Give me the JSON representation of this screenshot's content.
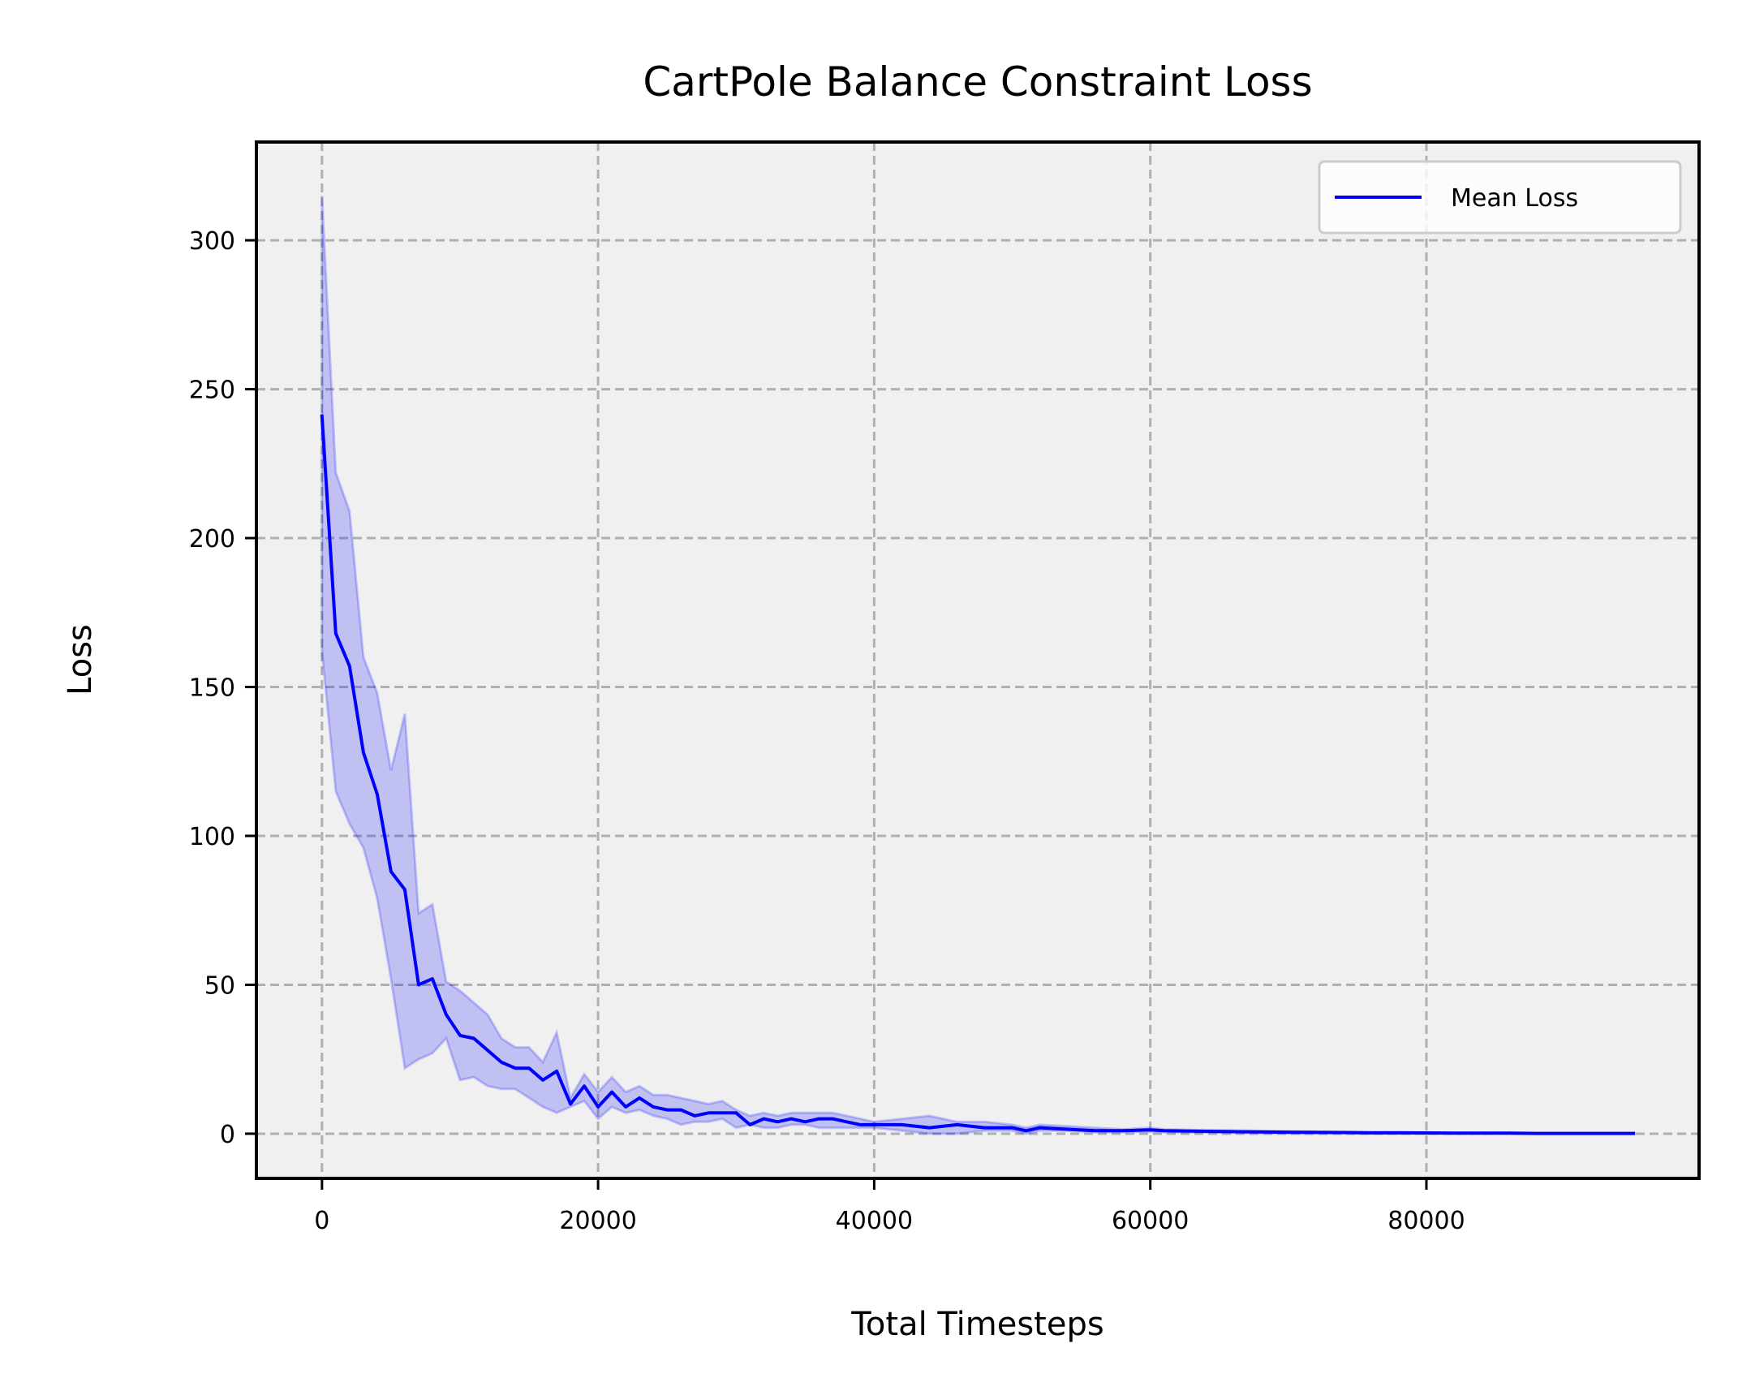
{
  "chart_data": {
    "type": "line",
    "title": "CartPole Balance Constraint Loss",
    "xlabel": "Total Timesteps",
    "ylabel": "Loss",
    "xlim": [
      -4750,
      99750
    ],
    "ylim": [
      -15,
      333
    ],
    "xticks": [
      0,
      20000,
      40000,
      60000,
      80000
    ],
    "yticks": [
      0,
      50,
      100,
      150,
      200,
      250,
      300
    ],
    "xtick_labels": [
      "0",
      "20000",
      "40000",
      "60000",
      "80000"
    ],
    "ytick_labels": [
      "0",
      "50",
      "100",
      "150",
      "200",
      "250",
      "300"
    ],
    "grid": true,
    "legend": {
      "position": "top-right",
      "entries": [
        "Mean Loss"
      ]
    },
    "colors": {
      "line": "#0000ff",
      "band": "#0000ff",
      "plot_bg": "#f0f0f0",
      "grid": "#b0b0b0"
    },
    "series": [
      {
        "name": "Mean Loss",
        "x": [
          0,
          1000,
          2000,
          3000,
          4000,
          5000,
          6000,
          7000,
          8000,
          9000,
          10000,
          11000,
          12000,
          13000,
          14000,
          15000,
          16000,
          17000,
          18000,
          19000,
          20000,
          21000,
          22000,
          23000,
          24000,
          25000,
          26000,
          27000,
          28000,
          29000,
          30000,
          31000,
          32000,
          33000,
          34000,
          35000,
          36000,
          37000,
          38000,
          39000,
          40000,
          42000,
          44000,
          46000,
          48000,
          50000,
          51000,
          52000,
          54000,
          56000,
          58000,
          60000,
          61000,
          64000,
          66000,
          70000,
          74000,
          76000,
          78000,
          82000,
          86000,
          88000,
          92000,
          95000
        ],
        "y": [
          241,
          168,
          157,
          128,
          114,
          88,
          82,
          50,
          52,
          40,
          33,
          32,
          28,
          24,
          22,
          22,
          18,
          21,
          10,
          16,
          9,
          14,
          9,
          12,
          9,
          8,
          8,
          6,
          7,
          7,
          7,
          3,
          5,
          4,
          5,
          4,
          5,
          5,
          4,
          3,
          3,
          3,
          2,
          3,
          2,
          2,
          1,
          2,
          1.5,
          1,
          1,
          1.3,
          1,
          0.8,
          0.7,
          0.5,
          0.4,
          0.3,
          0.3,
          0.2,
          0.2,
          0.1,
          0.1,
          0.1
        ],
        "lower": [
          162,
          115,
          104,
          96,
          79,
          52,
          22,
          25,
          27,
          32,
          18,
          19,
          16,
          15,
          15,
          12,
          9,
          7,
          9,
          11,
          5,
          9,
          7,
          8,
          6,
          5,
          3,
          4,
          4,
          5,
          2,
          3,
          2,
          2,
          3,
          3,
          2,
          2,
          2,
          2,
          2,
          1,
          0,
          0,
          1,
          1,
          0,
          1,
          1,
          0.5,
          0.5,
          0.7,
          0.5,
          0.4,
          0.3,
          0.2,
          0.2,
          0.1,
          0.1,
          0.1,
          0.1,
          0,
          0,
          0
        ],
        "upper": [
          315,
          222,
          209,
          160,
          148,
          122,
          141,
          74,
          77,
          51,
          48,
          44,
          40,
          32,
          29,
          29,
          24,
          34,
          12,
          20,
          14,
          19,
          14,
          16,
          13,
          13,
          12,
          11,
          10,
          11,
          8,
          6,
          7,
          6,
          7,
          7,
          7,
          7,
          6,
          5,
          4,
          5,
          6,
          4,
          4,
          3,
          2,
          3,
          2.5,
          2,
          1.5,
          2,
          1.5,
          1.2,
          1.1,
          0.8,
          0.6,
          0.5,
          0.5,
          0.3,
          0.3,
          0.2,
          0.2,
          0.2
        ]
      }
    ]
  }
}
